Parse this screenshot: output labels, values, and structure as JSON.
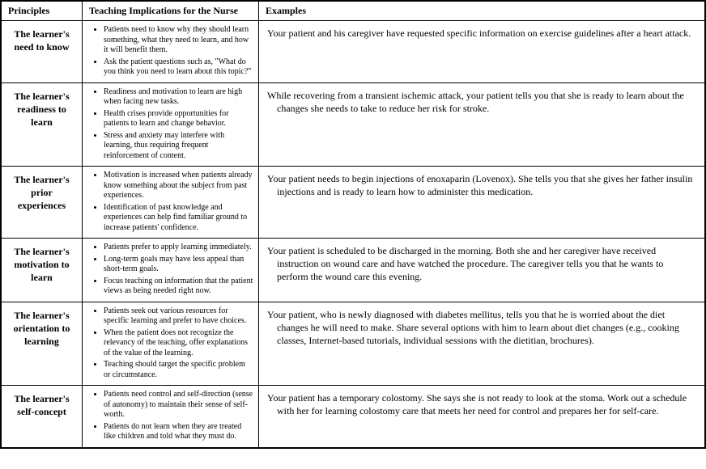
{
  "columns": {
    "principles": "Principles",
    "implications": "Teaching Implications for the Nurse",
    "examples": "Examples"
  },
  "rows": [
    {
      "principle": "The learner's need to know",
      "implications": [
        "Patients need to know why they should learn something, what they need to learn, and how it will benefit them.",
        "Ask the patient questions such as, \"What do you think you need to learn about this topic?\""
      ],
      "example": "Your patient and his caregiver have requested specific information on exercise guidelines after a heart attack."
    },
    {
      "principle": "The learner's readiness to learn",
      "implications": [
        "Readiness and motivation to learn are high when facing new tasks.",
        "Health crises provide opportunities for patients to learn and change behavior.",
        "Stress and anxiety may interfere with learning, thus requiring frequent reinforcement of content."
      ],
      "example": "While recovering from a transient ischemic attack, your patient tells you that she is ready to learn about the changes she needs to take to reduce her risk for stroke."
    },
    {
      "principle": "The learner's prior experiences",
      "implications": [
        "Motivation is increased when patients already know something about the subject from past experiences.",
        "Identification of past knowledge and experiences can help find familiar ground to increase patients' confidence."
      ],
      "example": "Your patient needs to begin injections of enoxaparin (Lovenox). She tells you that she gives her father insulin injections and is ready to learn how to administer this medication."
    },
    {
      "principle": "The learner's motivation to learn",
      "implications": [
        "Patients prefer to apply learning immediately.",
        "Long-term goals may have less appeal than short-term goals.",
        "Focus teaching on information that the patient views as being needed right now."
      ],
      "example": "Your patient is scheduled to be discharged in the morning. Both she and her caregiver have received instruction on wound care and have watched the procedure. The caregiver tells you that he wants to perform the wound care this evening."
    },
    {
      "principle": "The learner's orientation to learning",
      "implications": [
        "Patients seek out various resources for specific learning and prefer to have choices.",
        "When the patient does not recognize the relevancy of the teaching, offer explanations of the value of the learning.",
        "Teaching should target the specific problem or circumstance."
      ],
      "example": "Your patient, who is newly diagnosed with diabetes mellitus, tells you that he is worried about the diet changes he will need to make. Share several options with him to learn about diet changes (e.g., cooking classes, Internet-based tutorials, individual sessions with the dietitian, brochures)."
    },
    {
      "principle": "The learner's self-concept",
      "implications": [
        "Patients need control and self-direction (sense of autonomy) to maintain their sense of self-worth.",
        "Patients do not learn when they are treated like children and told what they must do."
      ],
      "example": "Your patient has a temporary colostomy. She says she is not ready to look at the stoma. Work out a schedule with her for learning colostomy care that meets her need for control and prepares her for self-care."
    }
  ]
}
